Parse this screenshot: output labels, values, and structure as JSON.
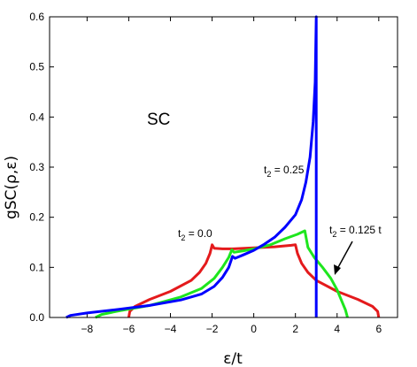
{
  "chart_data": {
    "type": "line",
    "xlabel": "ε/t",
    "ylabel": "gSC(ρ,ε)",
    "panel_label": "SC",
    "xlim": [
      -9.8,
      6.9
    ],
    "ylim": [
      0,
      0.6
    ],
    "xticks": [
      -8,
      -6,
      -4,
      -2,
      0,
      2,
      4,
      6
    ],
    "xtick_labels": [
      "−8",
      "−6",
      "−4",
      "−2",
      "0",
      "2",
      "4",
      "6"
    ],
    "yticks": [
      0.0,
      0.1,
      0.2,
      0.3,
      0.4,
      0.5,
      0.6
    ],
    "ytick_labels": [
      "0.0",
      "0.1",
      "0.2",
      "0.3",
      "0.4",
      "0.5",
      "0.6"
    ],
    "grid": false,
    "series": [
      {
        "label": "t2 = 0.0",
        "color": "#e41a1c",
        "points": [
          [
            -6.0,
            0.0
          ],
          [
            -5.95,
            0.012
          ],
          [
            -5.7,
            0.022
          ],
          [
            -5.0,
            0.036
          ],
          [
            -4.0,
            0.052
          ],
          [
            -3.0,
            0.074
          ],
          [
            -2.6,
            0.09
          ],
          [
            -2.3,
            0.108
          ],
          [
            -2.1,
            0.128
          ],
          [
            -2.0,
            0.145
          ],
          [
            -1.9,
            0.138
          ],
          [
            -1.5,
            0.137
          ],
          [
            -1.0,
            0.137
          ],
          [
            0.0,
            0.139
          ],
          [
            1.0,
            0.141
          ],
          [
            1.8,
            0.144
          ],
          [
            2.0,
            0.145
          ],
          [
            2.1,
            0.128
          ],
          [
            2.3,
            0.108
          ],
          [
            2.6,
            0.09
          ],
          [
            3.0,
            0.074
          ],
          [
            4.0,
            0.052
          ],
          [
            5.0,
            0.036
          ],
          [
            5.7,
            0.022
          ],
          [
            5.95,
            0.012
          ],
          [
            6.0,
            0.0
          ]
        ]
      },
      {
        "label": "t2 = 0.125 t",
        "color": "#1ee61e",
        "points": [
          [
            -7.6,
            0.0
          ],
          [
            -7.3,
            0.006
          ],
          [
            -6.5,
            0.013
          ],
          [
            -5.0,
            0.024
          ],
          [
            -3.5,
            0.041
          ],
          [
            -2.5,
            0.058
          ],
          [
            -1.9,
            0.078
          ],
          [
            -1.5,
            0.1
          ],
          [
            -1.2,
            0.12
          ],
          [
            -1.05,
            0.135
          ],
          [
            -0.95,
            0.13
          ],
          [
            -0.5,
            0.133
          ],
          [
            0.0,
            0.137
          ],
          [
            0.8,
            0.145
          ],
          [
            1.5,
            0.157
          ],
          [
            2.1,
            0.166
          ],
          [
            2.45,
            0.173
          ],
          [
            2.6,
            0.14
          ],
          [
            2.9,
            0.12
          ],
          [
            3.3,
            0.1
          ],
          [
            3.7,
            0.078
          ],
          [
            4.0,
            0.055
          ],
          [
            4.2,
            0.035
          ],
          [
            4.4,
            0.015
          ],
          [
            4.5,
            0.0
          ]
        ]
      },
      {
        "label": "t2 = 0.25",
        "color": "#0000ff",
        "points": [
          [
            -9.0,
            0.0
          ],
          [
            -8.8,
            0.004
          ],
          [
            -8.0,
            0.009
          ],
          [
            -6.5,
            0.016
          ],
          [
            -5.0,
            0.024
          ],
          [
            -3.5,
            0.035
          ],
          [
            -2.5,
            0.047
          ],
          [
            -1.9,
            0.062
          ],
          [
            -1.5,
            0.08
          ],
          [
            -1.2,
            0.1
          ],
          [
            -1.02,
            0.122
          ],
          [
            -0.9,
            0.118
          ],
          [
            -0.5,
            0.125
          ],
          [
            0.0,
            0.134
          ],
          [
            0.5,
            0.146
          ],
          [
            1.0,
            0.16
          ],
          [
            1.5,
            0.18
          ],
          [
            2.0,
            0.205
          ],
          [
            2.3,
            0.235
          ],
          [
            2.5,
            0.27
          ],
          [
            2.7,
            0.32
          ],
          [
            2.85,
            0.39
          ],
          [
            2.95,
            0.47
          ],
          [
            3.0,
            0.6
          ],
          [
            3.0,
            0.0
          ]
        ]
      }
    ],
    "annotations": [
      {
        "text": "t2 = 0.0",
        "base": "t",
        "sub": "2",
        "rest": " = 0.0"
      },
      {
        "text": "t2 = 0.25",
        "base": "t",
        "sub": "2",
        "rest": " = 0.25"
      },
      {
        "text": "t2 = 0.125 t",
        "base": "t",
        "sub": "2",
        "rest": " = 0.125 t"
      }
    ]
  }
}
